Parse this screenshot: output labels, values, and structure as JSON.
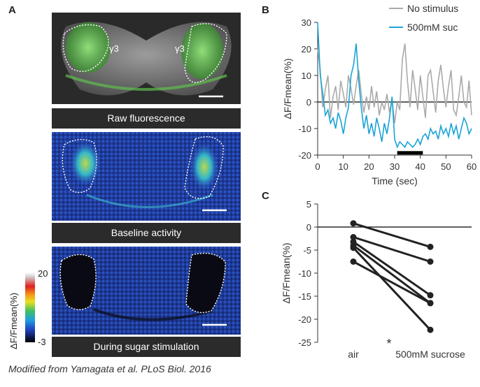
{
  "panel_letters": {
    "a": "A",
    "b": "B",
    "c": "C"
  },
  "panel_a": {
    "region_labels": [
      "γ3",
      "γ3"
    ],
    "captions": [
      "Raw fluorescence",
      "Baseline activity",
      "During sugar stimulation"
    ],
    "colorbar": {
      "title": "ΔF/Fmean(%)",
      "max_label": "20",
      "min_label": "-3"
    }
  },
  "footnote": "Modified from Yamagata et al. PLoS Biol. 2016",
  "colors": {
    "no_stimulus": "#aaaaaa",
    "sucrose": "#1ba3d6",
    "caption_bg": "#2b2b2b"
  },
  "chart_data": [
    {
      "id": "B",
      "type": "line",
      "title": "",
      "xlabel": "Time (sec)",
      "ylabel": "ΔF/Fmean(%)",
      "xlim": [
        0,
        60
      ],
      "ylim": [
        -20,
        30
      ],
      "xticks": [
        "0",
        "10",
        "20",
        "30",
        "40",
        "50",
        "60"
      ],
      "yticks": [
        "30",
        "20",
        "10",
        "0",
        "-10",
        "-20"
      ],
      "zero_line": true,
      "stimulus_bar": {
        "x_start": 31,
        "x_end": 41
      },
      "legend": [
        "No stimulus",
        "500mM suc"
      ],
      "series": [
        {
          "name": "No stimulus",
          "x": [
            0,
            1,
            2,
            3,
            4,
            5,
            6,
            7,
            8,
            9,
            10,
            11,
            12,
            13,
            14,
            15,
            16,
            17,
            18,
            19,
            20,
            21,
            22,
            23,
            24,
            25,
            26,
            27,
            28,
            29,
            30,
            31,
            32,
            33,
            34,
            35,
            36,
            37,
            38,
            39,
            40,
            41,
            42,
            43,
            44,
            45,
            46,
            47,
            48,
            49,
            50,
            51,
            52,
            53,
            54,
            55,
            56,
            57,
            58,
            59,
            60
          ],
          "y": [
            20,
            12,
            -2,
            5,
            10,
            -6,
            2,
            6,
            -3,
            8,
            3,
            -2,
            10,
            5,
            -1,
            6,
            12,
            3,
            -4,
            2,
            -3,
            6,
            -2,
            4,
            -5,
            0,
            -3,
            3,
            -4,
            1,
            -8,
            0,
            -3,
            16,
            22,
            8,
            -2,
            12,
            5,
            -3,
            10,
            2,
            -6,
            10,
            12,
            4,
            -4,
            8,
            14,
            5,
            -2,
            6,
            12,
            -3,
            -5,
            2,
            10,
            0,
            -2,
            8,
            -5
          ]
        },
        {
          "name": "500mM suc",
          "x": [
            0,
            1,
            2,
            3,
            4,
            5,
            6,
            7,
            8,
            9,
            10,
            11,
            12,
            13,
            14,
            15,
            16,
            17,
            18,
            19,
            20,
            21,
            22,
            23,
            24,
            25,
            26,
            27,
            28,
            29,
            30,
            31,
            32,
            33,
            34,
            35,
            36,
            37,
            38,
            39,
            40,
            41,
            42,
            43,
            44,
            45,
            46,
            47,
            48,
            49,
            50,
            51,
            52,
            53,
            54,
            55,
            56,
            57,
            58,
            59,
            60
          ],
          "y": [
            30,
            10,
            3,
            -5,
            -3,
            -8,
            -6,
            -10,
            -4,
            -7,
            -12,
            -6,
            -2,
            10,
            14,
            22,
            8,
            -2,
            -10,
            -5,
            -12,
            -8,
            -13,
            -6,
            -10,
            -15,
            -8,
            -12,
            -6,
            2,
            -14,
            -17,
            -15,
            -16,
            -17,
            -15,
            -16,
            -17,
            -16,
            -14,
            -16,
            -13,
            -12,
            -14,
            -10,
            -12,
            -11,
            -14,
            -9,
            -12,
            -10,
            -13,
            -8,
            -12,
            -9,
            -14,
            -10,
            -6,
            -8,
            -12,
            -10
          ]
        }
      ]
    },
    {
      "id": "C",
      "type": "scatter",
      "title": "",
      "xlabel": "",
      "ylabel": "ΔF/Fmean(%)",
      "categories": [
        "air",
        "500mM sucrose"
      ],
      "ylim": [
        -25,
        5
      ],
      "yticks": [
        "5",
        "0",
        "-5",
        "-10",
        "-15",
        "-20",
        "-25"
      ],
      "zero_line": true,
      "significance_label": "*",
      "pairs": [
        {
          "air": 0.8,
          "sucrose": -4.3
        },
        {
          "air": -2.2,
          "sucrose": -7.5
        },
        {
          "air": -3.2,
          "sucrose": -14.8
        },
        {
          "air": -4.0,
          "sucrose": -16.5
        },
        {
          "air": -4.5,
          "sucrose": -22.3
        },
        {
          "air": -7.5,
          "sucrose": -16.5
        }
      ]
    }
  ]
}
